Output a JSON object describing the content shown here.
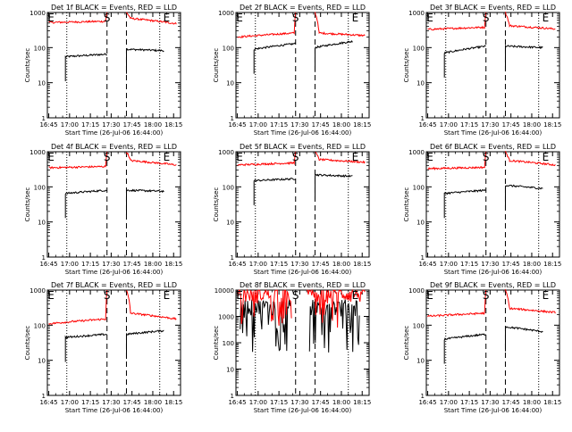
{
  "chart_data": [
    {
      "type": "line",
      "title": "Det 1f BLACK = Events, RED = LLD",
      "xlabel": "Start Time (26-Jul-06 16:44:00)",
      "ylabel": "Counts/sec",
      "y_scale": "log",
      "ylim": [
        1,
        1000
      ],
      "x_ticks": [
        "16:45",
        "17:00",
        "17:15",
        "17:30",
        "17:45",
        "18:00",
        "18:15"
      ],
      "y_ticks": [
        "1",
        "10",
        "100",
        "1000"
      ],
      "markers": [
        {
          "label": "S",
          "x": "17:27"
        },
        {
          "label": "E",
          "x": "18:10"
        }
      ],
      "dotted_x": [
        "16:58",
        "18:05"
      ],
      "dashed_x": [
        "17:27",
        "17:41"
      ],
      "series": [
        {
          "name": "Events",
          "color": "#000000",
          "segments": [
            {
              "x": [
                "16:57",
                "17:27"
              ],
              "y": [
                55,
                65
              ]
            },
            {
              "x": [
                "17:41",
                "18:08"
              ],
              "y": [
                90,
                82
              ]
            }
          ]
        },
        {
          "name": "LLD",
          "color": "#ff0000",
          "segments": [
            {
              "x": [
                "16:45",
                "17:26",
                "17:27"
              ],
              "y": [
                520,
                560,
                1000
              ]
            },
            {
              "x": [
                "17:41",
                "17:44",
                "18:17"
              ],
              "y": [
                1000,
                680,
                480
              ]
            }
          ]
        }
      ]
    },
    {
      "type": "line",
      "title": "Det 2f BLACK = Events, RED = LLD",
      "xlabel": "Start Time (26-Jul-06 16:44:00)",
      "ylabel": "Counts/sec",
      "y_scale": "log",
      "ylim": [
        1,
        1000
      ],
      "x_ticks": [
        "16:45",
        "17:00",
        "17:15",
        "17:30",
        "17:45",
        "18:00",
        "18:15"
      ],
      "y_ticks": [
        "1",
        "10",
        "100",
        "1000"
      ],
      "markers": [
        {
          "label": "S",
          "x": "17:27"
        },
        {
          "label": "E",
          "x": "18:10"
        }
      ],
      "dotted_x": [
        "16:58",
        "18:05"
      ],
      "dashed_x": [
        "17:27",
        "17:41"
      ],
      "series": [
        {
          "name": "Events",
          "color": "#000000",
          "segments": [
            {
              "x": [
                "16:57",
                "17:27"
              ],
              "y": [
                90,
                130
              ]
            },
            {
              "x": [
                "17:41",
                "18:08"
              ],
              "y": [
                100,
                150
              ]
            }
          ]
        },
        {
          "name": "LLD",
          "color": "#ff0000",
          "segments": [
            {
              "x": [
                "16:45",
                "17:26",
                "17:27"
              ],
              "y": [
                200,
                260,
                1000
              ]
            },
            {
              "x": [
                "17:41",
                "17:44",
                "18:17"
              ],
              "y": [
                1000,
                260,
                220
              ]
            }
          ]
        }
      ]
    },
    {
      "type": "line",
      "title": "Det 3f BLACK = Events, RED = LLD",
      "xlabel": "Start Time (26-Jul-06 16:44:00)",
      "ylabel": "Counts/sec",
      "y_scale": "log",
      "ylim": [
        1,
        1000
      ],
      "x_ticks": [
        "16:45",
        "17:00",
        "17:15",
        "17:30",
        "17:45",
        "18:00",
        "18:15"
      ],
      "y_ticks": [
        "1",
        "10",
        "100",
        "1000"
      ],
      "markers": [
        {
          "label": "S",
          "x": "17:27"
        },
        {
          "label": "E",
          "x": "18:10"
        }
      ],
      "dotted_x": [
        "16:58",
        "18:05"
      ],
      "dashed_x": [
        "17:27",
        "17:41"
      ],
      "series": [
        {
          "name": "Events",
          "color": "#000000",
          "segments": [
            {
              "x": [
                "16:57",
                "17:27"
              ],
              "y": [
                70,
                110
              ]
            },
            {
              "x": [
                "17:41",
                "18:08"
              ],
              "y": [
                110,
                100
              ]
            }
          ]
        },
        {
          "name": "LLD",
          "color": "#ff0000",
          "segments": [
            {
              "x": [
                "16:45",
                "17:26",
                "17:27"
              ],
              "y": [
                330,
                380,
                1000
              ]
            },
            {
              "x": [
                "17:41",
                "17:44",
                "18:17"
              ],
              "y": [
                1000,
                420,
                340
              ]
            }
          ]
        }
      ]
    },
    {
      "type": "line",
      "title": "Det 4f BLACK = Events, RED = LLD",
      "xlabel": "Start Time (26-Jul-06 16:44:00)",
      "ylabel": "Counts/sec",
      "y_scale": "log",
      "ylim": [
        1,
        1000
      ],
      "x_ticks": [
        "16:45",
        "17:00",
        "17:15",
        "17:30",
        "17:45",
        "18:00",
        "18:15"
      ],
      "y_ticks": [
        "1",
        "10",
        "100",
        "1000"
      ],
      "markers": [
        {
          "label": "S",
          "x": "17:27"
        },
        {
          "label": "E",
          "x": "18:10"
        }
      ],
      "dotted_x": [
        "16:58",
        "18:05"
      ],
      "dashed_x": [
        "17:27",
        "17:41"
      ],
      "series": [
        {
          "name": "Events",
          "color": "#000000",
          "segments": [
            {
              "x": [
                "16:57",
                "17:27"
              ],
              "y": [
                65,
                80
              ]
            },
            {
              "x": [
                "17:41",
                "18:08"
              ],
              "y": [
                80,
                75
              ]
            }
          ]
        },
        {
          "name": "LLD",
          "color": "#ff0000",
          "segments": [
            {
              "x": [
                "16:45",
                "17:26",
                "17:27"
              ],
              "y": [
                350,
                380,
                1000
              ]
            },
            {
              "x": [
                "17:41",
                "17:44",
                "18:17"
              ],
              "y": [
                1000,
                560,
                420
              ]
            }
          ]
        }
      ]
    },
    {
      "type": "line",
      "title": "Det 5f BLACK = Events, RED = LLD",
      "xlabel": "Start Time (26-Jul-06 16:44:00)",
      "ylabel": "Counts/sec",
      "y_scale": "log",
      "ylim": [
        1,
        1000
      ],
      "x_ticks": [
        "16:45",
        "17:00",
        "17:15",
        "17:30",
        "17:45",
        "18:00",
        "18:15"
      ],
      "y_ticks": [
        "1",
        "10",
        "100",
        "1000"
      ],
      "markers": [
        {
          "label": "S",
          "x": "17:27"
        },
        {
          "label": "E",
          "x": "18:10"
        }
      ],
      "dotted_x": [
        "16:58",
        "18:05"
      ],
      "dashed_x": [
        "17:27",
        "17:41"
      ],
      "series": [
        {
          "name": "Events",
          "color": "#000000",
          "segments": [
            {
              "x": [
                "16:57",
                "17:27"
              ],
              "y": [
                150,
                170
              ]
            },
            {
              "x": [
                "17:41",
                "18:08"
              ],
              "y": [
                220,
                200
              ]
            }
          ]
        },
        {
          "name": "LLD",
          "color": "#ff0000",
          "segments": [
            {
              "x": [
                "16:45",
                "17:26",
                "17:27"
              ],
              "y": [
                420,
                480,
                1000
              ]
            },
            {
              "x": [
                "17:41",
                "17:44",
                "18:17"
              ],
              "y": [
                1000,
                600,
                500
              ]
            }
          ]
        }
      ]
    },
    {
      "type": "line",
      "title": "Det 6f BLACK = Events, RED = LLD",
      "xlabel": "Start Time (26-Jul-06 16:44:00)",
      "ylabel": "Counts/sec",
      "y_scale": "log",
      "ylim": [
        1,
        1000
      ],
      "x_ticks": [
        "16:45",
        "17:00",
        "17:15",
        "17:30",
        "17:45",
        "18:00",
        "18:15"
      ],
      "y_ticks": [
        "1",
        "10",
        "100",
        "1000"
      ],
      "markers": [
        {
          "label": "S",
          "x": "17:27"
        },
        {
          "label": "E",
          "x": "18:10"
        }
      ],
      "dotted_x": [
        "16:58",
        "18:05"
      ],
      "dashed_x": [
        "17:27",
        "17:41"
      ],
      "series": [
        {
          "name": "Events",
          "color": "#000000",
          "segments": [
            {
              "x": [
                "16:57",
                "17:27"
              ],
              "y": [
                65,
                80
              ]
            },
            {
              "x": [
                "17:41",
                "18:08"
              ],
              "y": [
                110,
                90
              ]
            }
          ]
        },
        {
          "name": "LLD",
          "color": "#ff0000",
          "segments": [
            {
              "x": [
                "16:45",
                "17:26",
                "17:27"
              ],
              "y": [
                330,
                360,
                1000
              ]
            },
            {
              "x": [
                "17:41",
                "17:44",
                "18:17"
              ],
              "y": [
                1000,
                560,
                420
              ]
            }
          ]
        }
      ]
    },
    {
      "type": "line",
      "title": "Det 7f BLACK = Events, RED = LLD",
      "xlabel": "Start Time (26-Jul-06 16:44:00)",
      "ylabel": "Counts/sec",
      "y_scale": "log",
      "ylim": [
        1,
        1000
      ],
      "x_ticks": [
        "16:45",
        "17:00",
        "17:15",
        "17:30",
        "17:45",
        "18:00",
        "18:15"
      ],
      "y_ticks": [
        "1",
        "10",
        "100",
        "1000"
      ],
      "markers": [
        {
          "label": "S",
          "x": "17:27"
        },
        {
          "label": "E",
          "x": "18:10"
        }
      ],
      "dotted_x": [
        "16:58",
        "18:05"
      ],
      "dashed_x": [
        "17:27",
        "17:41"
      ],
      "series": [
        {
          "name": "Events",
          "color": "#000000",
          "segments": [
            {
              "x": [
                "16:57",
                "17:27"
              ],
              "y": [
                45,
                55
              ]
            },
            {
              "x": [
                "17:41",
                "18:08"
              ],
              "y": [
                55,
                70
              ]
            }
          ]
        },
        {
          "name": "LLD",
          "color": "#ff0000",
          "segments": [
            {
              "x": [
                "16:45",
                "17:26",
                "17:27"
              ],
              "y": [
                110,
                150,
                1000
              ]
            },
            {
              "x": [
                "17:41",
                "17:44",
                "18:17"
              ],
              "y": [
                1000,
                220,
                150
              ]
            }
          ]
        }
      ]
    },
    {
      "type": "line",
      "title": "Det 8f BLACK = Events, RED = LLD",
      "xlabel": "Start Time (26-Jul-06 16:44:00)",
      "ylabel": "Counts/sec",
      "y_scale": "log",
      "ylim": [
        1,
        10000
      ],
      "x_ticks": [
        "16:45",
        "17:00",
        "17:15",
        "17:30",
        "17:45",
        "18:00",
        "18:15"
      ],
      "y_ticks": [
        "1",
        "10",
        "100",
        "1000",
        "10000"
      ],
      "markers": [
        {
          "label": "S",
          "x": "17:27"
        },
        {
          "label": "E",
          "x": "18:10"
        }
      ],
      "dotted_x": [
        "16:58",
        "18:05"
      ],
      "dashed_x": [
        "17:27",
        "17:41"
      ],
      "noisy": true,
      "series": [
        {
          "name": "Events",
          "color": "#000000",
          "segments": [
            {
              "x": [
                "16:47",
                "17:24"
              ],
              "y": [
                800,
                2000
              ],
              "noise": "high"
            },
            {
              "x": [
                "17:37",
                "18:13"
              ],
              "y": [
                800,
                2000
              ],
              "noise": "high"
            }
          ]
        },
        {
          "name": "LLD",
          "color": "#ff0000",
          "segments": [
            {
              "x": [
                "16:45",
                "17:24"
              ],
              "y": [
                3000,
                6000
              ],
              "noise": "mid"
            },
            {
              "x": [
                "17:35",
                "18:17"
              ],
              "y": [
                3000,
                6000
              ],
              "noise": "mid"
            }
          ]
        }
      ]
    },
    {
      "type": "line",
      "title": "Det 9f BLACK = Events, RED = LLD",
      "xlabel": "Start Time (26-Jul-06 16:44:00)",
      "ylabel": "Counts/sec",
      "y_scale": "log",
      "ylim": [
        1,
        1000
      ],
      "x_ticks": [
        "16:45",
        "17:00",
        "17:15",
        "17:30",
        "17:45",
        "18:00",
        "18:15"
      ],
      "y_ticks": [
        "1",
        "10",
        "100",
        "1000"
      ],
      "markers": [
        {
          "label": "S",
          "x": "17:27"
        },
        {
          "label": "E",
          "x": "18:10"
        }
      ],
      "dotted_x": [
        "16:58",
        "18:05"
      ],
      "dashed_x": [
        "17:27",
        "17:41"
      ],
      "series": [
        {
          "name": "Events",
          "color": "#000000",
          "segments": [
            {
              "x": [
                "16:57",
                "17:27"
              ],
              "y": [
                40,
                55
              ]
            },
            {
              "x": [
                "17:41",
                "18:08"
              ],
              "y": [
                90,
                65
              ]
            }
          ]
        },
        {
          "name": "LLD",
          "color": "#ff0000",
          "segments": [
            {
              "x": [
                "16:45",
                "17:26",
                "17:27"
              ],
              "y": [
                180,
                220,
                1000
              ]
            },
            {
              "x": [
                "17:41",
                "17:44",
                "18:17"
              ],
              "y": [
                1000,
                300,
                230
              ]
            }
          ]
        }
      ]
    }
  ]
}
